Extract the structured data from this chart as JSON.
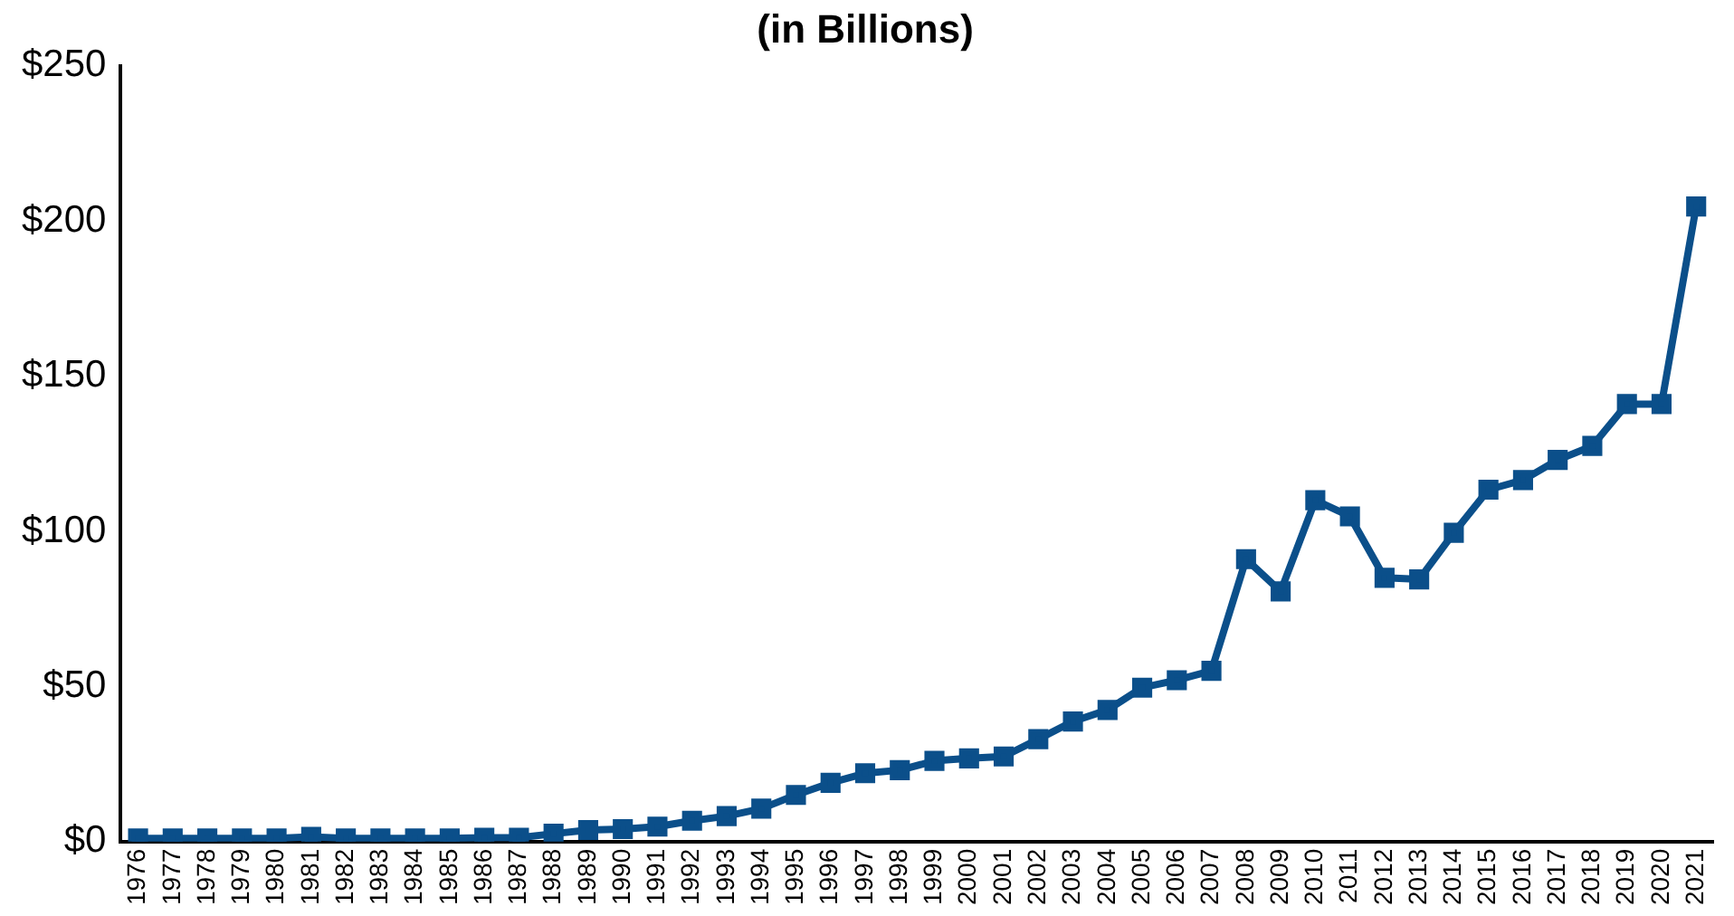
{
  "chart_data": {
    "type": "line",
    "title": "(in Billions)",
    "categories": [
      "1976",
      "1977",
      "1978",
      "1979",
      "1980",
      "1981",
      "1982",
      "1983",
      "1984",
      "1985",
      "1986",
      "1987",
      "1988",
      "1989",
      "1990",
      "1991",
      "1992",
      "1993",
      "1994",
      "1995",
      "1996",
      "1997",
      "1998",
      "1999",
      "2000",
      "2001",
      "2002",
      "2003",
      "2004",
      "2005",
      "2006",
      "2007",
      "2008",
      "2009",
      "2010",
      "2011",
      "2012",
      "2013",
      "2014",
      "2015",
      "2016",
      "2017",
      "2018",
      "2019",
      "2020",
      "2021"
    ],
    "series": [
      {
        "color": "#0b4f8a",
        "values": [
          1,
          1,
          1,
          1,
          1,
          1.5,
          1,
          1,
          1,
          1,
          1.2,
          1.2,
          2.5,
          3.7,
          4,
          4.8,
          6.7,
          8.2,
          10.6,
          15,
          18.9,
          22,
          23,
          26,
          26.8,
          27.4,
          33,
          38.7,
          42.4,
          49.6,
          52,
          55,
          91,
          80.6,
          110,
          104.8,
          85,
          84.5,
          99.5,
          113.4,
          116.5,
          123,
          127.5,
          141,
          141,
          204.7
        ]
      }
    ],
    "ylim": [
      0,
      250
    ],
    "yticks": [
      {
        "value": 0,
        "label": "$0"
      },
      {
        "value": 50,
        "label": "$50"
      },
      {
        "value": 100,
        "label": "$100"
      },
      {
        "value": 150,
        "label": "$150"
      },
      {
        "value": 200,
        "label": "$200"
      },
      {
        "value": 250,
        "label": "$250"
      }
    ],
    "grid": false,
    "legend": false,
    "marker": "square",
    "line_style": "solid"
  }
}
